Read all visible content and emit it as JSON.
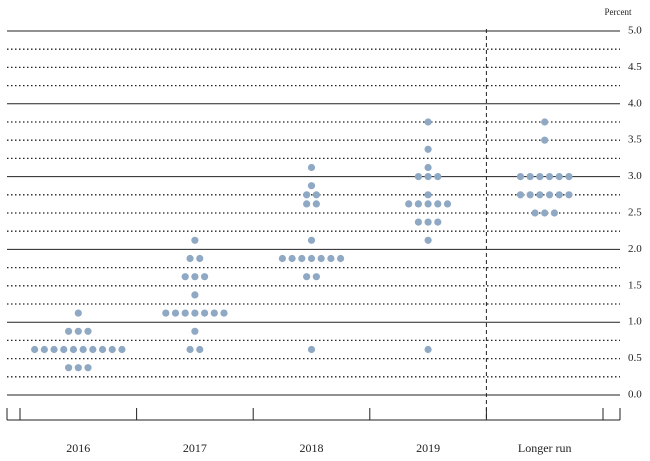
{
  "chart_data": {
    "type": "dot",
    "y_label": "Percent",
    "categories": [
      "2016",
      "2017",
      "2018",
      "2019",
      "Longer run"
    ],
    "values": [
      [
        0.375,
        0.375,
        0.375,
        0.625,
        0.625,
        0.625,
        0.625,
        0.625,
        0.625,
        0.625,
        0.625,
        0.625,
        0.625,
        0.875,
        0.875,
        0.875,
        1.125
      ],
      [
        0.625,
        0.625,
        0.875,
        1.125,
        1.125,
        1.125,
        1.125,
        1.125,
        1.125,
        1.125,
        1.375,
        1.625,
        1.625,
        1.625,
        1.875,
        1.875,
        2.125
      ],
      [
        0.625,
        1.625,
        1.625,
        1.875,
        1.875,
        1.875,
        1.875,
        1.875,
        1.875,
        1.875,
        2.125,
        2.625,
        2.625,
        2.75,
        2.75,
        2.875,
        3.125
      ],
      [
        0.625,
        2.125,
        2.375,
        2.375,
        2.375,
        2.625,
        2.625,
        2.625,
        2.625,
        2.625,
        2.75,
        3.0,
        3.0,
        3.0,
        3.125,
        3.375,
        3.75
      ],
      [
        2.5,
        2.5,
        2.5,
        2.75,
        2.75,
        2.75,
        2.75,
        2.75,
        2.75,
        3.0,
        3.0,
        3.0,
        3.0,
        3.0,
        3.0,
        3.5,
        3.75
      ]
    ],
    "color": "#8fa9c4",
    "ylim": [
      0,
      5
    ],
    "yticks": [
      {
        "value": 0,
        "label": "0.0"
      },
      {
        "value": 0.5,
        "label": "0.5"
      },
      {
        "value": 1,
        "label": "1.0"
      },
      {
        "value": 1.5,
        "label": "1.5"
      },
      {
        "value": 2,
        "label": "2.0"
      },
      {
        "value": 2.5,
        "label": "2.5"
      },
      {
        "value": 3,
        "label": "3.0"
      },
      {
        "value": 3.5,
        "label": "3.5"
      },
      {
        "value": 4,
        "label": "4.0"
      },
      {
        "value": 4.5,
        "label": "4.5"
      },
      {
        "value": 5,
        "label": "5.0"
      }
    ],
    "grid": true
  }
}
